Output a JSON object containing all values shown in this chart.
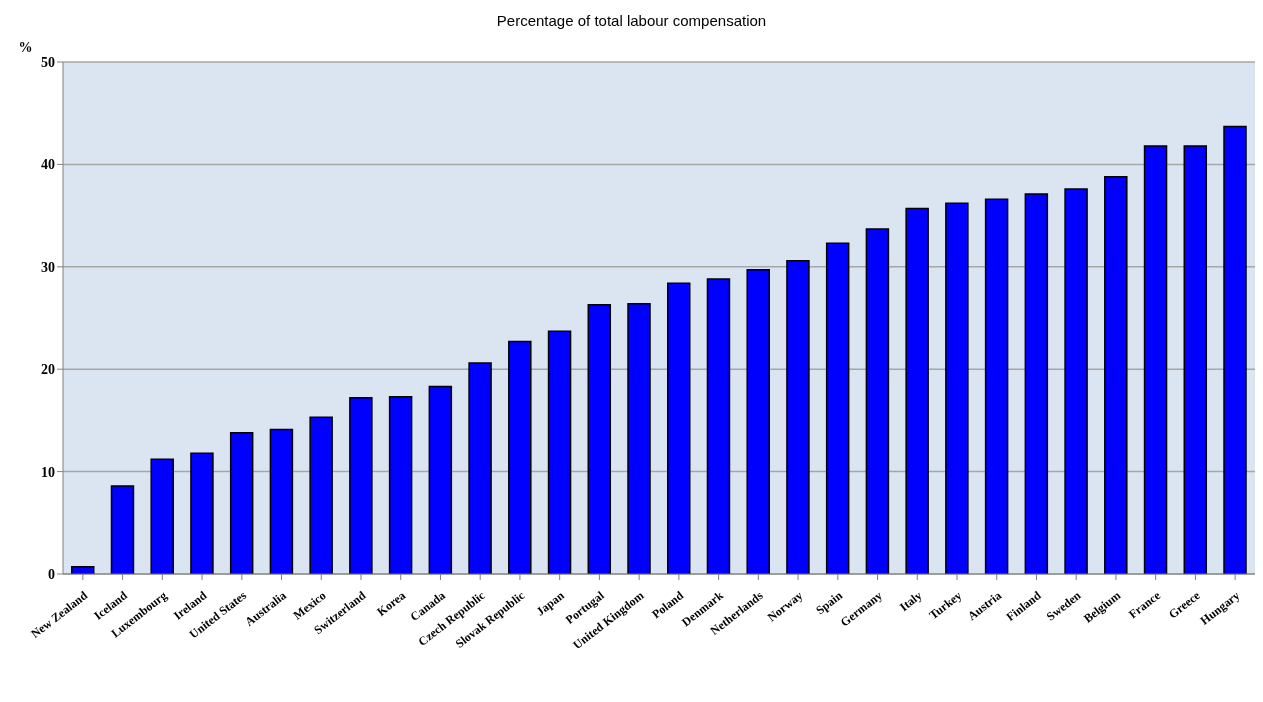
{
  "chart_data": {
    "type": "bar",
    "title": "Percentage of total labour compensation",
    "ylabel": "%",
    "categories": [
      "New Zealand",
      "Iceland",
      "Luxembourg",
      "Ireland",
      "United States",
      "Australia",
      "Mexico",
      "Switzerland",
      "Korea",
      "Canada",
      "Czech Republic",
      "Slovak Republic",
      "Japan",
      "Portugal",
      "United Kingdom",
      "Poland",
      "Denmark",
      "Netherlands",
      "Norway",
      "Spain",
      "Germany",
      "Italy",
      "Turkey",
      "Austria",
      "Finland",
      "Sweden",
      "Belgium",
      "France",
      "Greece",
      "Hungary"
    ],
    "values": [
      0.7,
      8.6,
      11.2,
      11.8,
      13.8,
      14.1,
      15.3,
      17.2,
      17.3,
      18.3,
      20.6,
      22.7,
      23.7,
      26.3,
      26.4,
      28.4,
      28.8,
      29.7,
      30.6,
      32.3,
      33.7,
      35.7,
      36.2,
      36.6,
      37.1,
      37.6,
      38.8,
      41.8,
      41.8,
      43.7
    ],
    "color": "#0000ff",
    "ylim": [
      0,
      50
    ],
    "yticks": [
      0,
      10,
      20,
      30,
      40,
      50
    ],
    "grid": "y"
  }
}
